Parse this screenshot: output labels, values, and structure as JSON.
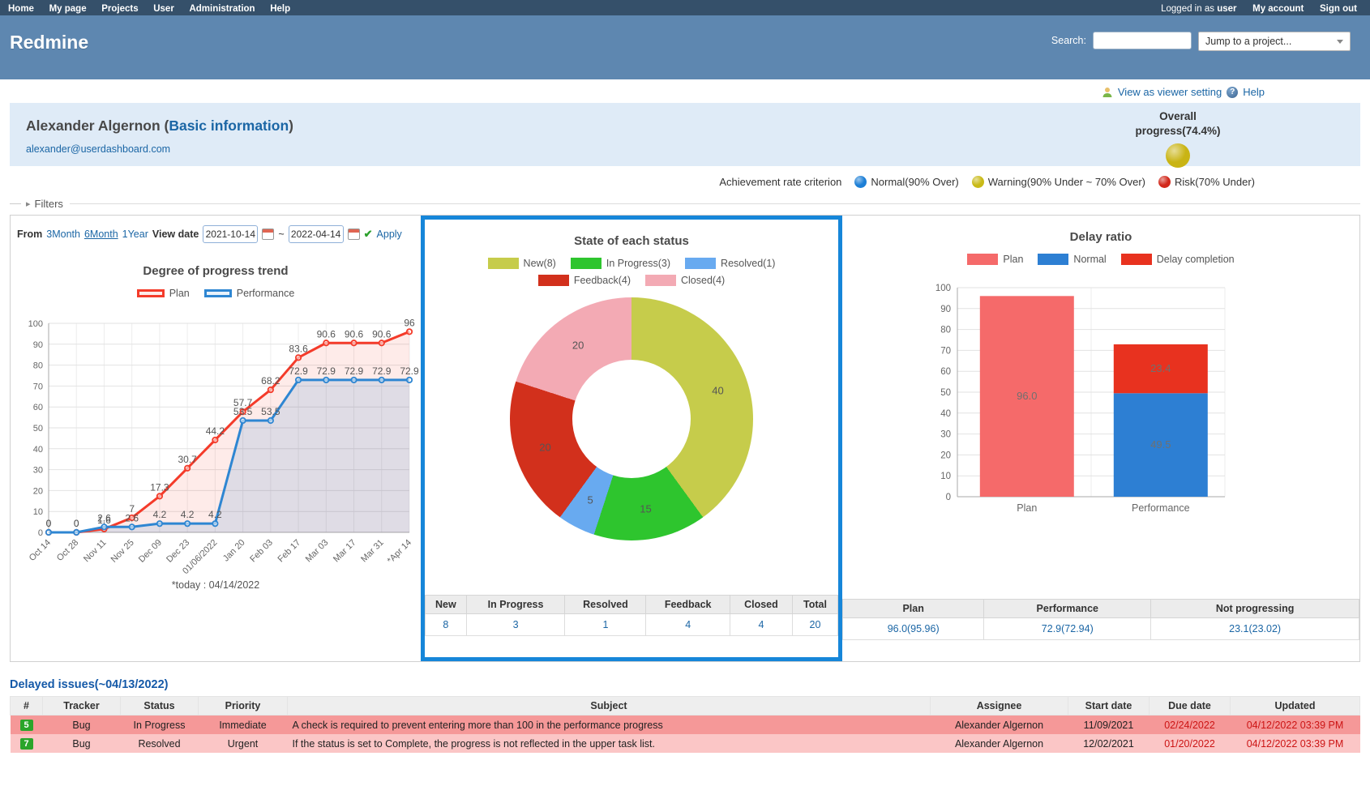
{
  "topbar": {
    "items": [
      "Home",
      "My page",
      "Projects",
      "User",
      "Administration",
      "Help"
    ],
    "logged_prefix": "Logged in as",
    "logged_user": "user",
    "my_account": "My account",
    "sign_out": "Sign out"
  },
  "header": {
    "app_title": "Redmine",
    "search_label": "Search:",
    "jump_placeholder": "Jump to a project..."
  },
  "links": {
    "viewer": "View as viewer setting",
    "help": "Help"
  },
  "user": {
    "name_open": "Alexander Algernon (",
    "info_link": "Basic information",
    "name_close": ")",
    "email": "alexander@userdashboard.com",
    "overall_label": "Overall progress(74.4%)",
    "overall_color": "#c9b414"
  },
  "criteria": {
    "label": "Achievement rate criterion",
    "items": [
      {
        "label": "Normal(90% Over)",
        "color": "#1d7fd6"
      },
      {
        "label": "Warning(90% Under ~ 70% Over)",
        "color": "#c9ba17"
      },
      {
        "label": "Risk(70% Under)",
        "color": "#d2291c"
      }
    ]
  },
  "filters": {
    "label": "Filters"
  },
  "controls": {
    "from": "From",
    "r3month": "3Month",
    "r6month": "6Month",
    "r1year": "1Year",
    "view_date": "View date",
    "date_from": "2021-10-14",
    "tilde": "~",
    "date_to": "2022-04-14",
    "apply": "Apply"
  },
  "chart_data": [
    {
      "type": "line",
      "title": "Degree of progress trend",
      "categories": [
        "Oct 14",
        "Oct 28",
        "Nov 11",
        "Nov 25",
        "Dec 09",
        "Dec 23",
        "01/06/2022",
        "Jan 20",
        "Feb 03",
        "Feb 17",
        "Mar 03",
        "Mar 17",
        "Mar 31",
        "*Apr 14"
      ],
      "series": [
        {
          "name": "Plan",
          "color": "#f43b2a",
          "fill": "rgba(244,59,42,0.10)",
          "legend_bg": "#fdecea",
          "values": [
            0,
            0,
            1.6,
            7,
            17.3,
            30.7,
            44.2,
            57.7,
            68.2,
            83.6,
            90.6,
            90.6,
            90.6,
            96
          ]
        },
        {
          "name": "Performance",
          "color": "#2e86d2",
          "fill": "rgba(46,134,210,0.15)",
          "legend_bg": "#e9f2fb",
          "values": [
            0,
            0,
            2.6,
            2.6,
            4.2,
            4.2,
            4.2,
            53.5,
            53.5,
            72.9,
            72.9,
            72.9,
            72.9,
            72.9
          ]
        }
      ],
      "ylim": [
        0,
        100
      ],
      "ytick": 10,
      "grid": true,
      "legend_position": "top",
      "note": "*today : 04/14/2022"
    },
    {
      "type": "pie",
      "title": "State of each status",
      "labels": [
        "New(8)",
        "In Progress(3)",
        "Resolved(1)",
        "Feedback(4)",
        "Closed(4)"
      ],
      "counts": [
        8,
        3,
        1,
        4,
        4
      ],
      "values": [
        40,
        15,
        5,
        20,
        20
      ],
      "colors": [
        "#c6cc4b",
        "#2ec52e",
        "#68aaf0",
        "#d2301c",
        "#f3aab4"
      ],
      "legend_position": "top"
    },
    {
      "type": "bar",
      "title": "Delay ratio",
      "categories": [
        "Plan",
        "Performance"
      ],
      "stacks": [
        [
          {
            "name": "Plan",
            "value": 96.0,
            "label": "96.0",
            "color": "#f56a6a"
          }
        ],
        [
          {
            "name": "Normal",
            "value": 49.5,
            "label": "49.5",
            "color": "#2d7fd3"
          },
          {
            "name": "Delay completion",
            "value": 23.4,
            "label": "23.4",
            "color": "#e8321f"
          }
        ]
      ],
      "legend": [
        {
          "name": "Plan",
          "color": "#f56a6a"
        },
        {
          "name": "Normal",
          "color": "#2d7fd3"
        },
        {
          "name": "Delay completion",
          "color": "#e8321f"
        }
      ],
      "ylim": [
        0,
        100
      ],
      "ytick": 10,
      "grid": true,
      "legend_position": "top"
    }
  ],
  "status_table": {
    "headers": [
      "New",
      "In Progress",
      "Resolved",
      "Feedback",
      "Closed",
      "Total"
    ],
    "values": [
      "8",
      "3",
      "1",
      "4",
      "4",
      "20"
    ]
  },
  "delay_table": {
    "headers": [
      "Plan",
      "Performance",
      "Not progressing"
    ],
    "values": [
      "96.0(95.96)",
      "72.9(72.94)",
      "23.1(23.02)"
    ]
  },
  "delayed": {
    "title": "Delayed issues(~04/13/2022)",
    "badge_color": "#2aa52a",
    "headers": [
      "#",
      "Tracker",
      "Status",
      "Priority",
      "Subject",
      "Assignee",
      "Start date",
      "Due date",
      "Updated"
    ],
    "rows": [
      {
        "id": "5",
        "tracker": "Bug",
        "status": "In Progress",
        "priority": "Immediate",
        "subject": "A check is required to prevent entering more than 100 in the performance progress",
        "assignee": "Alexander Algernon",
        "start": "11/09/2021",
        "due": "02/24/2022",
        "updated": "04/12/2022 03:39 PM"
      },
      {
        "id": "7",
        "tracker": "Bug",
        "status": "Resolved",
        "priority": "Urgent",
        "subject": "If the status is set to Complete, the progress is not reflected in the upper task list.",
        "assignee": "Alexander Algernon",
        "start": "12/02/2021",
        "due": "01/20/2022",
        "updated": "04/12/2022 03:39 PM"
      }
    ]
  }
}
